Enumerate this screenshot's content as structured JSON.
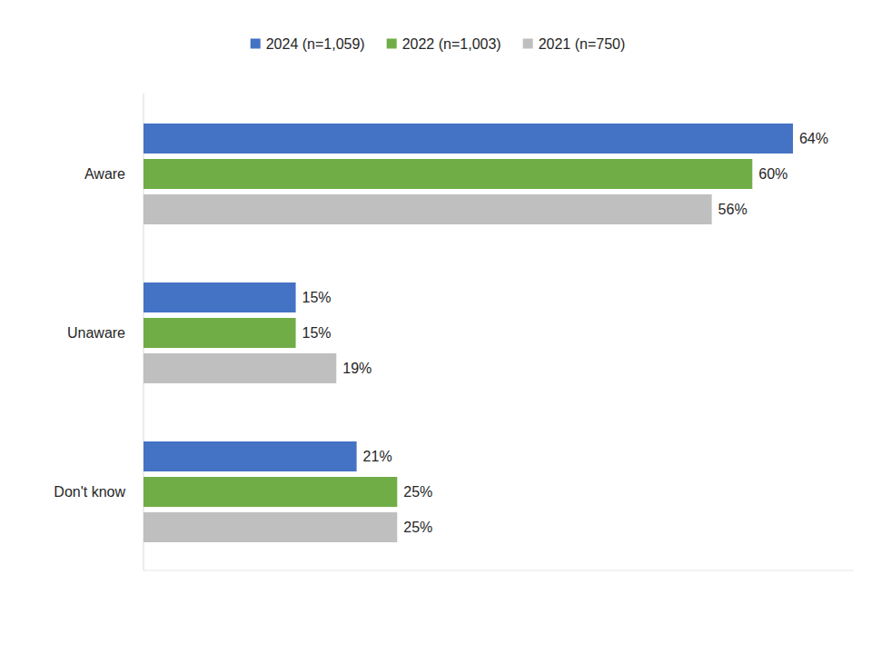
{
  "chart_data": {
    "type": "bar",
    "orientation": "horizontal",
    "categories": [
      "Aware",
      "Unaware",
      "Don't know"
    ],
    "series": [
      {
        "name": "2024 (n=1,059)",
        "color": "#4472c4",
        "values": [
          64,
          15,
          21
        ],
        "value_labels": [
          "64%",
          "15%",
          "21%"
        ]
      },
      {
        "name": "2022 (n=1,003)",
        "color": "#70ad47",
        "values": [
          60,
          15,
          25
        ],
        "value_labels": [
          "60%",
          "15%",
          "25%"
        ]
      },
      {
        "name": "2021 (n=750)",
        "color": "#bfbfbf",
        "values": [
          56,
          19,
          25
        ],
        "value_labels": [
          "56%",
          "19%",
          "25%"
        ]
      }
    ],
    "ylim": [
      0,
      70
    ],
    "data_labels": true,
    "tick_labels": "y",
    "legend": "top",
    "grid": false
  }
}
